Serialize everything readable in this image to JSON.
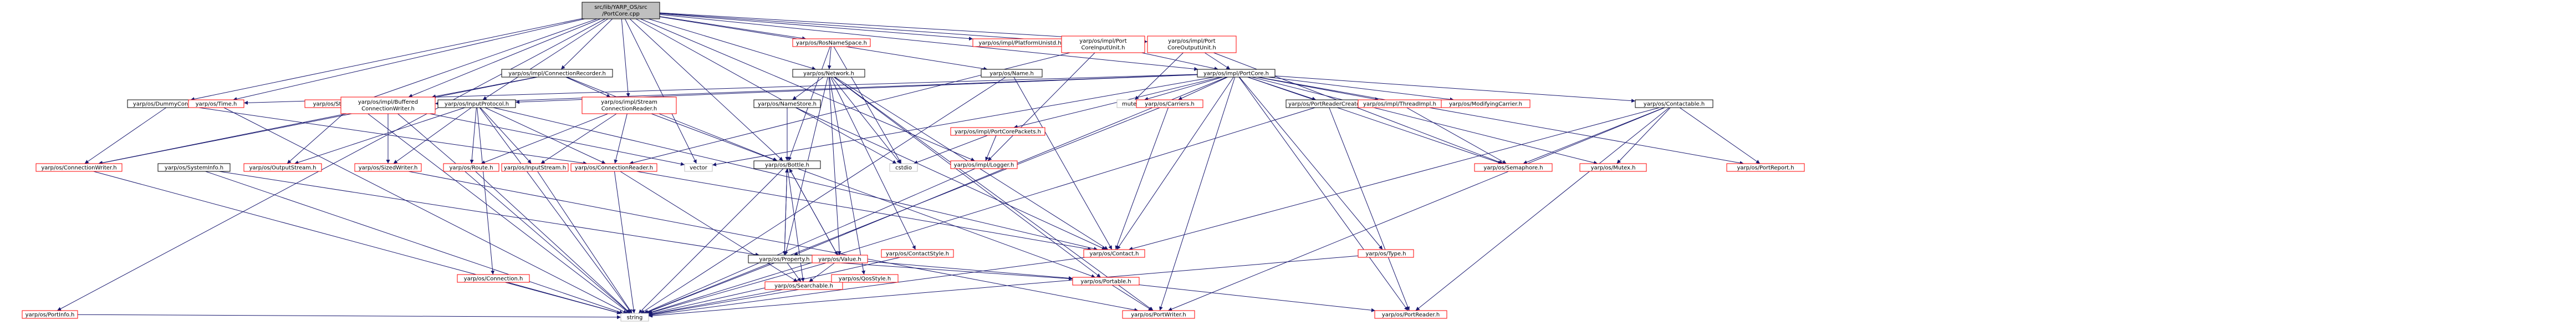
{
  "graph": {
    "type": "include-dependency-graph",
    "colors": {
      "root_fill": "#bfbfbf",
      "node_fill": "#ffffff",
      "node_border": "#000000",
      "linked_border": "#ff0000",
      "edge": "#191970",
      "text": "#000000"
    },
    "nodes": [
      {
        "id": "root",
        "label": "src/lib/YARP_OS/src/PortCore.cpp",
        "kind": "root"
      },
      {
        "id": "portinfo",
        "label": "yarp/os/PortInfo.h",
        "kind": "linked"
      },
      {
        "id": "dummyconn",
        "label": "yarp/os/DummyConnector.h",
        "kind": "plain"
      },
      {
        "id": "time",
        "label": "yarp/os/Time.h",
        "kind": "linked"
      },
      {
        "id": "stringout",
        "label": "yarp/os/StringOutputStream.h",
        "kind": "linked"
      },
      {
        "id": "connrec",
        "label": "yarp/os/impl/ConnectionRecorder.h",
        "kind": "plain"
      },
      {
        "id": "inputproto",
        "label": "yarp/os/InputProtocol.h",
        "kind": "plain"
      },
      {
        "id": "streamconn",
        "label": "yarp/os/impl/StreamConnectionReader.h",
        "kind": "linked"
      },
      {
        "id": "rosnamespace",
        "label": "yarp/os/RosNameSpace.h",
        "kind": "linked"
      },
      {
        "id": "platformunistd",
        "label": "yarp/os/impl/PlatformUnistd.h",
        "kind": "linked"
      },
      {
        "id": "pcinputunit",
        "label": "yarp/os/impl/PortCoreInputUnit.h",
        "kind": "linked"
      },
      {
        "id": "pcoutputunit",
        "label": "yarp/os/impl/PortCoreOutputUnit.h",
        "kind": "linked"
      },
      {
        "id": "network",
        "label": "yarp/os/Network.h",
        "kind": "plain"
      },
      {
        "id": "name",
        "label": "yarp/os/Name.h",
        "kind": "plain"
      },
      {
        "id": "portcore",
        "label": "yarp/os/impl/PortCore.h",
        "kind": "plain"
      },
      {
        "id": "bufferedconn",
        "label": "yarp/os/impl/BufferedConnectionWriter.h",
        "kind": "linked"
      },
      {
        "id": "nameconfig",
        "label": "yarp/os/NameStore.h",
        "kind": "plain"
      },
      {
        "id": "mutex",
        "label": "mutex",
        "kind": "plain-gray"
      },
      {
        "id": "pcpackets",
        "label": "yarp/os/impl/PortCorePackets.h",
        "kind": "linked"
      },
      {
        "id": "carriers",
        "label": "yarp/os/Carriers.h",
        "kind": "linked"
      },
      {
        "id": "prcreator",
        "label": "yarp/os/PortReaderCreator.h",
        "kind": "plain"
      },
      {
        "id": "threadimpl",
        "label": "yarp/os/impl/ThreadImpl.h",
        "kind": "linked"
      },
      {
        "id": "modcarrier",
        "label": "yarp/os/ModifyingCarrier.h",
        "kind": "linked"
      },
      {
        "id": "contactable",
        "label": "yarp/os/Contactable.h",
        "kind": "plain"
      },
      {
        "id": "connwriter",
        "label": "yarp/os/ConnectionWriter.h",
        "kind": "linked"
      },
      {
        "id": "systeminfo",
        "label": "yarp/os/SystemInfo.h",
        "kind": "plain"
      },
      {
        "id": "outputstream",
        "label": "yarp/os/OutputStream.h",
        "kind": "linked"
      },
      {
        "id": "sizedwriter",
        "label": "yarp/os/SizedWriter.h",
        "kind": "linked"
      },
      {
        "id": "route",
        "label": "yarp/os/Route.h",
        "kind": "linked"
      },
      {
        "id": "inputstream",
        "label": "yarp/os/InputStream.h",
        "kind": "linked"
      },
      {
        "id": "connreader",
        "label": "yarp/os/ConnectionReader.h",
        "kind": "linked"
      },
      {
        "id": "vector",
        "label": "vector",
        "kind": "plain-gray"
      },
      {
        "id": "bottle",
        "label": "yarp/os/Bottle.h",
        "kind": "plain"
      },
      {
        "id": "cstdio",
        "label": "cstdio",
        "kind": "plain-gray"
      },
      {
        "id": "logger",
        "label": "yarp/os/impl/Logger.h",
        "kind": "linked"
      },
      {
        "id": "semaphore",
        "label": "yarp/os/Semaphore.h",
        "kind": "linked"
      },
      {
        "id": "ymutex",
        "label": "yarp/os/Mutex.h",
        "kind": "linked"
      },
      {
        "id": "portreport",
        "label": "yarp/os/PortReport.h",
        "kind": "linked"
      },
      {
        "id": "contact",
        "label": "yarp/os/Contact.h",
        "kind": "linked"
      },
      {
        "id": "type",
        "label": "yarp/os/Type.h",
        "kind": "linked"
      },
      {
        "id": "property",
        "label": "yarp/os/Property.h",
        "kind": "plain"
      },
      {
        "id": "value",
        "label": "yarp/os/Value.h",
        "kind": "linked"
      },
      {
        "id": "contactstyle",
        "label": "yarp/os/ContactStyle.h",
        "kind": "linked"
      },
      {
        "id": "connection",
        "label": "yarp/os/Connection.h",
        "kind": "linked"
      },
      {
        "id": "searchable",
        "label": "yarp/os/Searchable.h",
        "kind": "linked"
      },
      {
        "id": "qosstyle",
        "label": "yarp/os/QosStyle.h",
        "kind": "linked"
      },
      {
        "id": "portable",
        "label": "yarp/os/Portable.h",
        "kind": "linked"
      },
      {
        "id": "string",
        "label": "string",
        "kind": "plain-gray"
      },
      {
        "id": "portwriter",
        "label": "yarp/os/PortWriter.h",
        "kind": "linked"
      },
      {
        "id": "portreader",
        "label": "yarp/os/PortReader.h",
        "kind": "linked"
      }
    ],
    "edges": [
      [
        "root",
        "portinfo"
      ],
      [
        "root",
        "dummyconn"
      ],
      [
        "root",
        "time"
      ],
      [
        "root",
        "stringout"
      ],
      [
        "root",
        "connrec"
      ],
      [
        "root",
        "inputproto"
      ],
      [
        "root",
        "streamconn"
      ],
      [
        "root",
        "rosnamespace"
      ],
      [
        "root",
        "platformunistd"
      ],
      [
        "root",
        "pcinputunit"
      ],
      [
        "root",
        "pcoutputunit"
      ],
      [
        "root",
        "network"
      ],
      [
        "root",
        "name"
      ],
      [
        "root",
        "portcore"
      ],
      [
        "root",
        "bufferedconn"
      ],
      [
        "root",
        "vector"
      ],
      [
        "root",
        "cstdio"
      ],
      [
        "root",
        "logger"
      ],
      [
        "root",
        "bottle"
      ],
      [
        "portinfo",
        "string"
      ],
      [
        "dummyconn",
        "connwriter"
      ],
      [
        "dummyconn",
        "connreader"
      ],
      [
        "time",
        "string"
      ],
      [
        "stringout",
        "outputstream"
      ],
      [
        "stringout",
        "string"
      ],
      [
        "connrec",
        "bufferedconn"
      ],
      [
        "connrec",
        "streamconn"
      ],
      [
        "connrec",
        "connwriter"
      ],
      [
        "connrec",
        "bottle"
      ],
      [
        "inputproto",
        "connreader"
      ],
      [
        "inputproto",
        "outputstream"
      ],
      [
        "inputproto",
        "sizedwriter"
      ],
      [
        "inputproto",
        "route"
      ],
      [
        "inputproto",
        "inputstream"
      ],
      [
        "inputproto",
        "contact"
      ],
      [
        "inputproto",
        "connection"
      ],
      [
        "inputproto",
        "string"
      ],
      [
        "streamconn",
        "connreader"
      ],
      [
        "streamconn",
        "inputstream"
      ],
      [
        "streamconn",
        "route"
      ],
      [
        "streamconn",
        "bottle"
      ],
      [
        "rosnamespace",
        "network"
      ],
      [
        "rosnamespace",
        "bottle"
      ],
      [
        "rosnamespace",
        "cstdio"
      ],
      [
        "pcinputunit",
        "portcore"
      ],
      [
        "pcinputunit",
        "logger"
      ],
      [
        "pcinputunit",
        "connreader"
      ],
      [
        "pcoutputunit",
        "portcore"
      ],
      [
        "pcoutputunit",
        "mutex"
      ],
      [
        "pcoutputunit",
        "semaphore"
      ],
      [
        "network",
        "nameconfig"
      ],
      [
        "network",
        "contact"
      ],
      [
        "network",
        "portable"
      ],
      [
        "network",
        "value"
      ],
      [
        "network",
        "property"
      ],
      [
        "network",
        "contactstyle"
      ],
      [
        "network",
        "qosstyle"
      ],
      [
        "network",
        "portwriter"
      ],
      [
        "network",
        "cstdio"
      ],
      [
        "name",
        "contact"
      ],
      [
        "name",
        "string"
      ],
      [
        "portcore",
        "time"
      ],
      [
        "portcore",
        "bufferedconn"
      ],
      [
        "portcore",
        "inputproto"
      ],
      [
        "portcore",
        "mutex"
      ],
      [
        "portcore",
        "pcpackets"
      ],
      [
        "portcore",
        "carriers"
      ],
      [
        "portcore",
        "prcreator"
      ],
      [
        "portcore",
        "threadimpl"
      ],
      [
        "portcore",
        "modcarrier"
      ],
      [
        "portcore",
        "contactable"
      ],
      [
        "portcore",
        "semaphore"
      ],
      [
        "portcore",
        "ymutex"
      ],
      [
        "portcore",
        "portreport"
      ],
      [
        "portcore",
        "contact"
      ],
      [
        "portcore",
        "type"
      ],
      [
        "portcore",
        "portreader"
      ],
      [
        "portcore",
        "portwriter"
      ],
      [
        "portcore",
        "vector"
      ],
      [
        "portcore",
        "property"
      ],
      [
        "bufferedconn",
        "connwriter"
      ],
      [
        "bufferedconn",
        "sizedwriter"
      ],
      [
        "bufferedconn",
        "vector"
      ],
      [
        "bufferedconn",
        "string"
      ],
      [
        "nameconfig",
        "bottle"
      ],
      [
        "nameconfig",
        "contact"
      ],
      [
        "pcpackets",
        "logger"
      ],
      [
        "pcpackets",
        "cstdio"
      ],
      [
        "carriers",
        "contact"
      ],
      [
        "carriers",
        "string"
      ],
      [
        "prcreator",
        "portreader"
      ],
      [
        "prcreator",
        "string"
      ],
      [
        "threadimpl",
        "semaphore"
      ],
      [
        "contactable",
        "contact"
      ],
      [
        "contactable",
        "portwriter"
      ],
      [
        "contactable",
        "portreader"
      ],
      [
        "contactable",
        "semaphore"
      ],
      [
        "contactable",
        "ymutex"
      ],
      [
        "contactable",
        "portreport"
      ],
      [
        "connwriter",
        "string"
      ],
      [
        "systeminfo",
        "property"
      ],
      [
        "systeminfo",
        "string"
      ],
      [
        "sizedwriter",
        "portwriter"
      ],
      [
        "route",
        "string"
      ],
      [
        "inputstream",
        "string"
      ],
      [
        "connreader",
        "searchable"
      ],
      [
        "connreader",
        "contact"
      ],
      [
        "connreader",
        "string"
      ],
      [
        "bottle",
        "property"
      ],
      [
        "bottle",
        "value"
      ],
      [
        "bottle",
        "searchable"
      ],
      [
        "bottle",
        "portable"
      ],
      [
        "bottle",
        "string"
      ],
      [
        "logger",
        "string"
      ],
      [
        "contact",
        "string"
      ],
      [
        "type",
        "string"
      ],
      [
        "property",
        "searchable"
      ],
      [
        "property",
        "portable"
      ],
      [
        "property",
        "bottle"
      ],
      [
        "property",
        "string"
      ],
      [
        "value",
        "bottle"
      ],
      [
        "value",
        "searchable"
      ],
      [
        "value",
        "portable"
      ],
      [
        "value",
        "string"
      ],
      [
        "contactstyle",
        "string"
      ],
      [
        "connection",
        "string"
      ],
      [
        "searchable",
        "string"
      ],
      [
        "qosstyle",
        "string"
      ],
      [
        "portable",
        "portwriter"
      ],
      [
        "portable",
        "portreader"
      ]
    ]
  }
}
